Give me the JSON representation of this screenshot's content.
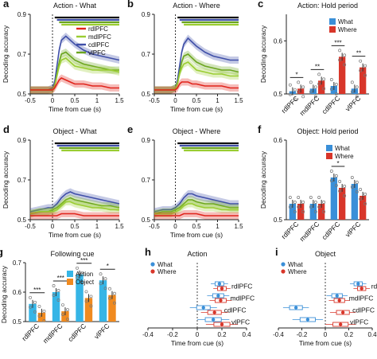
{
  "colors": {
    "rdlPFC": "#e0231b",
    "mdlPFC": "#9acd32",
    "cdlPFC": "#3f4fa8",
    "vlPFC": "#6ba51e",
    "what": "#3a8fd8",
    "where": "#d8362a",
    "action": "#36b5e6",
    "object": "#f08a1f",
    "box": "#7a7a7a"
  },
  "panels": {
    "a": {
      "letter": "a",
      "title": "Action - What"
    },
    "b": {
      "letter": "b",
      "title": "Action - Where"
    },
    "c": {
      "letter": "c",
      "title": "Action: Hold period"
    },
    "d": {
      "letter": "d",
      "title": "Object - What"
    },
    "e": {
      "letter": "e",
      "title": "Object - Where"
    },
    "f": {
      "letter": "f",
      "title": "Object: Hold period"
    },
    "g": {
      "letter": "g",
      "title": "Following cue"
    },
    "h": {
      "letter": "h",
      "title": "Action"
    },
    "i": {
      "letter": "i",
      "title": "Object"
    }
  },
  "labels": {
    "ylabel": "Decoding accuracy",
    "xlabel_cue": "Time from cue (s)",
    "line_legend": [
      "rdlPFC",
      "mdlPFC",
      "cdlPFC",
      "vlPFC"
    ],
    "what_where": [
      "What",
      "Where"
    ],
    "action_object": [
      "Action",
      "Object"
    ],
    "regions": [
      "rdlPFC",
      "mdlPFC",
      "cdlPFC",
      "vlPFC"
    ]
  },
  "chart_data": [
    {
      "panel": "a",
      "type": "line",
      "x": [
        -0.5,
        -0.3,
        -0.1,
        0,
        0.05,
        0.1,
        0.15,
        0.2,
        0.3,
        0.4,
        0.5,
        0.7,
        0.9,
        1.1,
        1.3,
        1.5
      ],
      "xlim": [
        -0.5,
        1.5
      ],
      "ylim": [
        0.5,
        0.9
      ],
      "yticks": [
        0.5,
        0.7,
        0.9
      ],
      "series": [
        {
          "name": "rdlPFC",
          "values": [
            0.52,
            0.52,
            0.52,
            0.52,
            0.53,
            0.55,
            0.57,
            0.58,
            0.57,
            0.56,
            0.55,
            0.55,
            0.54,
            0.54,
            0.53,
            0.53
          ]
        },
        {
          "name": "mdlPFC",
          "values": [
            0.52,
            0.52,
            0.52,
            0.52,
            0.54,
            0.59,
            0.64,
            0.67,
            0.68,
            0.66,
            0.64,
            0.63,
            0.62,
            0.62,
            0.62,
            0.61
          ]
        },
        {
          "name": "cdlPFC",
          "values": [
            0.52,
            0.52,
            0.52,
            0.53,
            0.56,
            0.64,
            0.72,
            0.77,
            0.79,
            0.77,
            0.75,
            0.72,
            0.7,
            0.69,
            0.68,
            0.67
          ]
        },
        {
          "name": "vlPFC",
          "values": [
            0.52,
            0.52,
            0.52,
            0.52,
            0.54,
            0.6,
            0.66,
            0.7,
            0.71,
            0.69,
            0.67,
            0.65,
            0.64,
            0.63,
            0.62,
            0.62
          ]
        }
      ]
    },
    {
      "panel": "b",
      "type": "line",
      "x": [
        -0.5,
        -0.3,
        -0.1,
        0,
        0.05,
        0.1,
        0.15,
        0.2,
        0.3,
        0.4,
        0.5,
        0.7,
        0.9,
        1.1,
        1.3,
        1.5
      ],
      "xlim": [
        -0.5,
        1.5
      ],
      "ylim": [
        0.5,
        0.9
      ],
      "yticks": [
        0.5,
        0.7,
        0.9
      ],
      "series": [
        {
          "name": "rdlPFC",
          "values": [
            0.52,
            0.52,
            0.52,
            0.52,
            0.53,
            0.55,
            0.56,
            0.56,
            0.56,
            0.55,
            0.55,
            0.54,
            0.54,
            0.54,
            0.53,
            0.53
          ]
        },
        {
          "name": "mdlPFC",
          "values": [
            0.52,
            0.52,
            0.52,
            0.53,
            0.55,
            0.6,
            0.63,
            0.65,
            0.66,
            0.64,
            0.62,
            0.61,
            0.6,
            0.6,
            0.59,
            0.59
          ]
        },
        {
          "name": "cdlPFC",
          "values": [
            0.52,
            0.52,
            0.52,
            0.53,
            0.57,
            0.64,
            0.71,
            0.75,
            0.78,
            0.76,
            0.74,
            0.71,
            0.69,
            0.68,
            0.67,
            0.67
          ]
        },
        {
          "name": "vlPFC",
          "values": [
            0.52,
            0.52,
            0.52,
            0.53,
            0.55,
            0.61,
            0.66,
            0.69,
            0.7,
            0.68,
            0.66,
            0.64,
            0.63,
            0.62,
            0.62,
            0.61
          ]
        }
      ]
    },
    {
      "panel": "c",
      "type": "bar",
      "categories": [
        "rdlPFC",
        "mdlPFC",
        "cdlPFC",
        "vlPFC"
      ],
      "ylim": [
        0.5,
        0.65
      ],
      "yticks": [
        0.5,
        0.6
      ],
      "series": [
        {
          "name": "What",
          "values": [
            0.505,
            0.51,
            0.515,
            0.51
          ]
        },
        {
          "name": "Where",
          "values": [
            0.51,
            0.525,
            0.57,
            0.55
          ]
        }
      ],
      "significance": [
        "*",
        "**",
        "***",
        "**"
      ]
    },
    {
      "panel": "d",
      "type": "line",
      "x": [
        -0.5,
        -0.3,
        -0.1,
        0,
        0.1,
        0.2,
        0.3,
        0.4,
        0.5,
        0.7,
        0.9,
        1.1,
        1.3,
        1.5
      ],
      "xlim": [
        -0.5,
        1.5
      ],
      "ylim": [
        0.5,
        0.9
      ],
      "yticks": [
        0.5,
        0.7,
        0.9
      ],
      "series": [
        {
          "name": "rdlPFC",
          "values": [
            0.52,
            0.52,
            0.52,
            0.52,
            0.52,
            0.53,
            0.53,
            0.53,
            0.53,
            0.52,
            0.52,
            0.52,
            0.52,
            0.52
          ]
        },
        {
          "name": "mdlPFC",
          "values": [
            0.53,
            0.54,
            0.54,
            0.54,
            0.55,
            0.57,
            0.59,
            0.59,
            0.58,
            0.57,
            0.56,
            0.56,
            0.55,
            0.55
          ]
        },
        {
          "name": "cdlPFC",
          "values": [
            0.54,
            0.55,
            0.56,
            0.56,
            0.58,
            0.61,
            0.63,
            0.64,
            0.63,
            0.62,
            0.61,
            0.6,
            0.59,
            0.58
          ]
        },
        {
          "name": "vlPFC",
          "values": [
            0.53,
            0.54,
            0.54,
            0.55,
            0.56,
            0.58,
            0.6,
            0.61,
            0.6,
            0.59,
            0.58,
            0.57,
            0.57,
            0.56
          ]
        }
      ]
    },
    {
      "panel": "e",
      "type": "line",
      "x": [
        -0.5,
        -0.3,
        -0.1,
        0,
        0.1,
        0.2,
        0.3,
        0.4,
        0.5,
        0.7,
        0.9,
        1.1,
        1.3,
        1.5
      ],
      "xlim": [
        -0.5,
        1.5
      ],
      "ylim": [
        0.5,
        0.9
      ],
      "yticks": [
        0.5,
        0.7,
        0.9
      ],
      "series": [
        {
          "name": "rdlPFC",
          "values": [
            0.52,
            0.52,
            0.52,
            0.52,
            0.52,
            0.53,
            0.53,
            0.53,
            0.53,
            0.52,
            0.52,
            0.52,
            0.52,
            0.52
          ]
        },
        {
          "name": "mdlPFC",
          "values": [
            0.53,
            0.53,
            0.53,
            0.54,
            0.55,
            0.57,
            0.58,
            0.58,
            0.57,
            0.56,
            0.56,
            0.55,
            0.55,
            0.55
          ]
        },
        {
          "name": "cdlPFC",
          "values": [
            0.54,
            0.55,
            0.55,
            0.56,
            0.58,
            0.61,
            0.63,
            0.63,
            0.62,
            0.61,
            0.6,
            0.59,
            0.58,
            0.58
          ]
        },
        {
          "name": "vlPFC",
          "values": [
            0.53,
            0.54,
            0.54,
            0.55,
            0.56,
            0.58,
            0.6,
            0.6,
            0.59,
            0.58,
            0.58,
            0.57,
            0.56,
            0.56
          ]
        }
      ]
    },
    {
      "panel": "f",
      "type": "bar",
      "categories": [
        "rdlPFC",
        "mdlPFC",
        "cdlPFC",
        "vlPFC"
      ],
      "ylim": [
        0.5,
        0.6
      ],
      "yticks": [
        0.5,
        0.6
      ],
      "series": [
        {
          "name": "What",
          "values": [
            0.52,
            0.52,
            0.553,
            0.545
          ]
        },
        {
          "name": "Where",
          "values": [
            0.52,
            0.52,
            0.54,
            0.53
          ]
        }
      ],
      "significance": [
        "",
        "",
        "*",
        ""
      ]
    },
    {
      "panel": "g",
      "type": "bar",
      "categories": [
        "rdlPFC",
        "mdlPFC",
        "cdlPFC",
        "vlPFC"
      ],
      "ylim": [
        0.5,
        0.7
      ],
      "yticks": [
        0.5,
        0.6,
        0.7
      ],
      "series": [
        {
          "name": "Action",
          "values": [
            0.56,
            0.6,
            0.66,
            0.64
          ]
        },
        {
          "name": "Object",
          "values": [
            0.53,
            0.535,
            0.58,
            0.59
          ]
        }
      ],
      "significance": [
        "***",
        "***",
        "***",
        "*"
      ]
    },
    {
      "panel": "h",
      "type": "box",
      "xlim": [
        -0.4,
        0.4
      ],
      "xticks": [
        -0.4,
        -0.2,
        0,
        0.2,
        0.4
      ],
      "categories": [
        "rdlPFC",
        "mdlPFC",
        "cdlPFC",
        "vlPFC"
      ],
      "series": [
        {
          "name": "What",
          "values": [
            0.18,
            0.17,
            0.05,
            0.13
          ]
        },
        {
          "name": "Where",
          "values": [
            0.2,
            0.19,
            0.14,
            0.2
          ]
        }
      ]
    },
    {
      "panel": "i",
      "type": "box",
      "xlim": [
        -0.4,
        0.4
      ],
      "xticks": [
        -0.4,
        -0.2,
        0,
        0.2,
        0.4
      ],
      "categories": [
        "rdlPFC",
        "mdlPFC",
        "cdlPFC",
        "vlPFC"
      ],
      "series": [
        {
          "name": "What",
          "values": [
            0.28,
            0.1,
            -0.25,
            -0.15
          ]
        },
        {
          "name": "Where",
          "values": [
            0.31,
            0.12,
            0.15,
            0.13
          ]
        }
      ]
    }
  ]
}
